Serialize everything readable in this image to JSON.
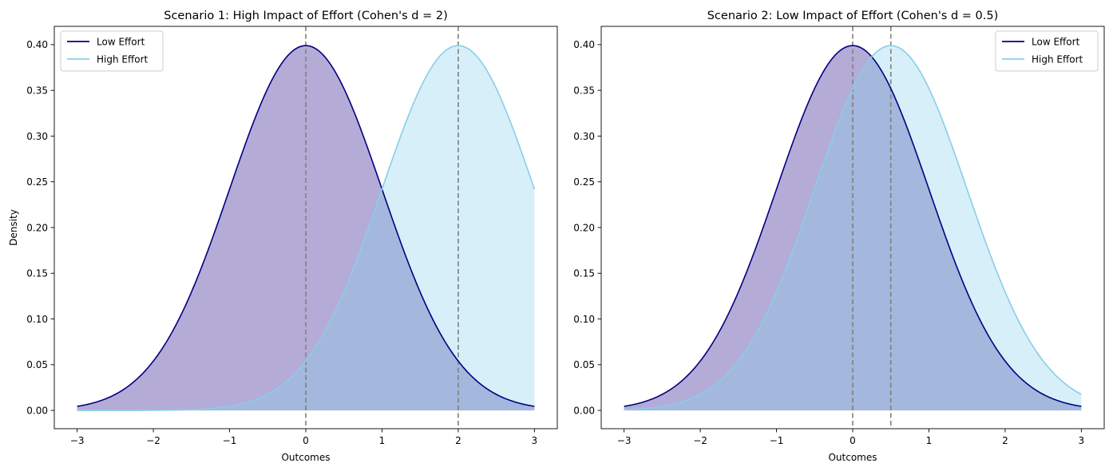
{
  "chart_data": [
    {
      "type": "line",
      "title": "Scenario 1: High Impact of Effort (Cohen's d = 2)",
      "xlabel": "Outcomes",
      "ylabel": "Density",
      "xlim": [
        -3.3,
        3.3
      ],
      "ylim": [
        -0.02,
        0.42
      ],
      "x_range": [
        -3,
        3
      ],
      "xticks": [
        -3,
        -2,
        -1,
        0,
        1,
        2,
        3
      ],
      "xtick_labels": [
        "−3",
        "−2",
        "−1",
        "0",
        "1",
        "2",
        "3"
      ],
      "yticks": [
        0.0,
        0.05,
        0.1,
        0.15,
        0.2,
        0.25,
        0.3,
        0.35,
        0.4
      ],
      "ytick_labels": [
        "0.00",
        "0.05",
        "0.10",
        "0.15",
        "0.20",
        "0.25",
        "0.30",
        "0.35",
        "0.40"
      ],
      "legend_position": "upper-left",
      "grid": false,
      "series": [
        {
          "name": "Low Effort",
          "distribution": "normal",
          "mean": 0,
          "sd": 1,
          "color": "#000080",
          "fill": "#6a5aad",
          "fill_opacity": 0.5
        },
        {
          "name": "High Effort",
          "distribution": "normal",
          "mean": 2,
          "sd": 1,
          "color": "#87ceeb",
          "fill": "#87ceeb",
          "fill_opacity": 0.33
        }
      ],
      "vlines": [
        {
          "x": 0,
          "color": "#808080",
          "style": "dashed"
        },
        {
          "x": 2,
          "color": "#808080",
          "style": "dashed"
        }
      ]
    },
    {
      "type": "line",
      "title": "Scenario 2: Low Impact of Effort (Cohen's d = 0.5)",
      "xlabel": "Outcomes",
      "ylabel": "",
      "xlim": [
        -3.3,
        3.3
      ],
      "ylim": [
        -0.02,
        0.42
      ],
      "x_range": [
        -3,
        3
      ],
      "xticks": [
        -3,
        -2,
        -1,
        0,
        1,
        2,
        3
      ],
      "xtick_labels": [
        "−3",
        "−2",
        "−1",
        "0",
        "1",
        "2",
        "3"
      ],
      "yticks": [
        0.0,
        0.05,
        0.1,
        0.15,
        0.2,
        0.25,
        0.3,
        0.35,
        0.4
      ],
      "ytick_labels": [
        "0.00",
        "0.05",
        "0.10",
        "0.15",
        "0.20",
        "0.25",
        "0.30",
        "0.35",
        "0.40"
      ],
      "legend_position": "upper-right",
      "grid": false,
      "series": [
        {
          "name": "Low Effort",
          "distribution": "normal",
          "mean": 0,
          "sd": 1,
          "color": "#000080",
          "fill": "#6a5aad",
          "fill_opacity": 0.5
        },
        {
          "name": "High Effort",
          "distribution": "normal",
          "mean": 0.5,
          "sd": 1,
          "color": "#87ceeb",
          "fill": "#87ceeb",
          "fill_opacity": 0.33
        }
      ],
      "vlines": [
        {
          "x": 0,
          "color": "#808080",
          "style": "dashed"
        },
        {
          "x": 0.5,
          "color": "#808080",
          "style": "dashed"
        }
      ]
    }
  ]
}
